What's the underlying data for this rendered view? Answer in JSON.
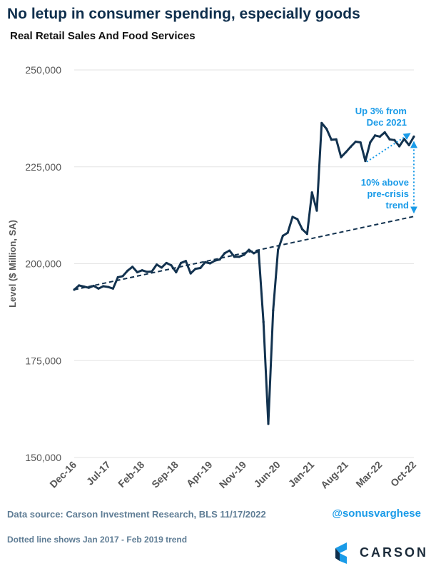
{
  "header": {
    "title": "No letup in consumer spending, especially goods",
    "subtitle": "Real Retail Sales And Food Services"
  },
  "footer": {
    "source": "Data source: Carson Investment Research, BLS   11/17/2022",
    "note": "Dotted line shows Jan 2017 - Feb 2019 trend",
    "handle": "@sonusvarghese",
    "logo_text": "CARSON"
  },
  "colors": {
    "series": "#12324f",
    "annotation": "#1a9be8",
    "text": "#555555",
    "grid": "#e3e3e3"
  },
  "chart_data": {
    "type": "line",
    "title": "Real Retail Sales And Food Services",
    "xlabel": "",
    "ylabel": "Level ($ Million, SA)",
    "ylim": [
      150000,
      250000
    ],
    "yticks": [
      150000,
      175000,
      200000,
      225000,
      250000
    ],
    "ytick_labels": [
      "150,000",
      "175,000",
      "200,000",
      "225,000",
      "250,000"
    ],
    "xtick_labels": [
      "Dec-16",
      "Jul-17",
      "Feb-18",
      "Sep-18",
      "Apr-19",
      "Nov-19",
      "Jun-20",
      "Jan-21",
      "Aug-21",
      "Mar-22",
      "Oct-22"
    ],
    "grid": "horizontal",
    "series": [
      {
        "name": "",
        "style": "solid",
        "x_start": "Dec-16",
        "x_end": "Oct-22",
        "values": [
          193300,
          194400,
          194100,
          193800,
          194300,
          193600,
          194200,
          194000,
          193600,
          196500,
          196800,
          198200,
          199200,
          197800,
          198300,
          197900,
          198000,
          199800,
          199000,
          200200,
          199600,
          197800,
          200200,
          200700,
          197500,
          198700,
          198900,
          200400,
          200100,
          200800,
          201100,
          202700,
          203400,
          201800,
          201800,
          202300,
          203600,
          202700,
          203300,
          185000,
          158700,
          188000,
          203600,
          207200,
          208000,
          212100,
          211500,
          208900,
          207700,
          218400,
          213700,
          236300,
          234800,
          232000,
          232100,
          227500,
          228800,
          230200,
          231500,
          231300,
          226500,
          231300,
          233100,
          232800,
          233900,
          232100,
          231900,
          230300,
          232200,
          230600,
          232800
        ]
      },
      {
        "name": "",
        "style": "dashed",
        "x_start": "Dec-16",
        "x_end": "Oct-22",
        "values": [
          193300,
          212200
        ]
      }
    ],
    "annotations": [
      {
        "text_lines": [
          "Up 3% from",
          "Dec 2021"
        ],
        "from": {
          "x": "Dec-21",
          "y": 226500
        },
        "to": {
          "x": "Oct-22",
          "y": 232800
        }
      },
      {
        "text_lines": [
          "10% above",
          "pre-crisis",
          "trend"
        ],
        "from": {
          "x": "Oct-22",
          "y": 232800
        },
        "to": {
          "x": "Oct-22",
          "y": 212200
        }
      }
    ]
  }
}
